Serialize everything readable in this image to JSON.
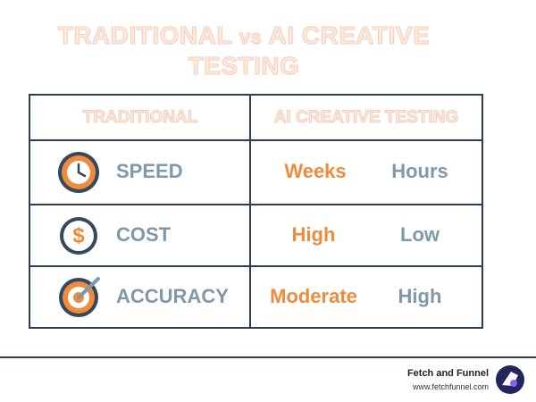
{
  "title": {
    "part1": "TRADITIONAL",
    "vs": "vs",
    "part2": "AI CREATIVE TESTING"
  },
  "table": {
    "headers": [
      "TRADITIONAL",
      "AI CREATIVE TESTING"
    ],
    "rows": [
      [
        "SPEED",
        "Weeks",
        "Hours"
      ],
      [
        "COST",
        "High",
        "Low"
      ],
      [
        "ACCURACY",
        "Moderate",
        "High"
      ]
    ]
  },
  "footer": {
    "brand": "Fetch and Funnel",
    "url": "www.fetchfunnel.com"
  }
}
